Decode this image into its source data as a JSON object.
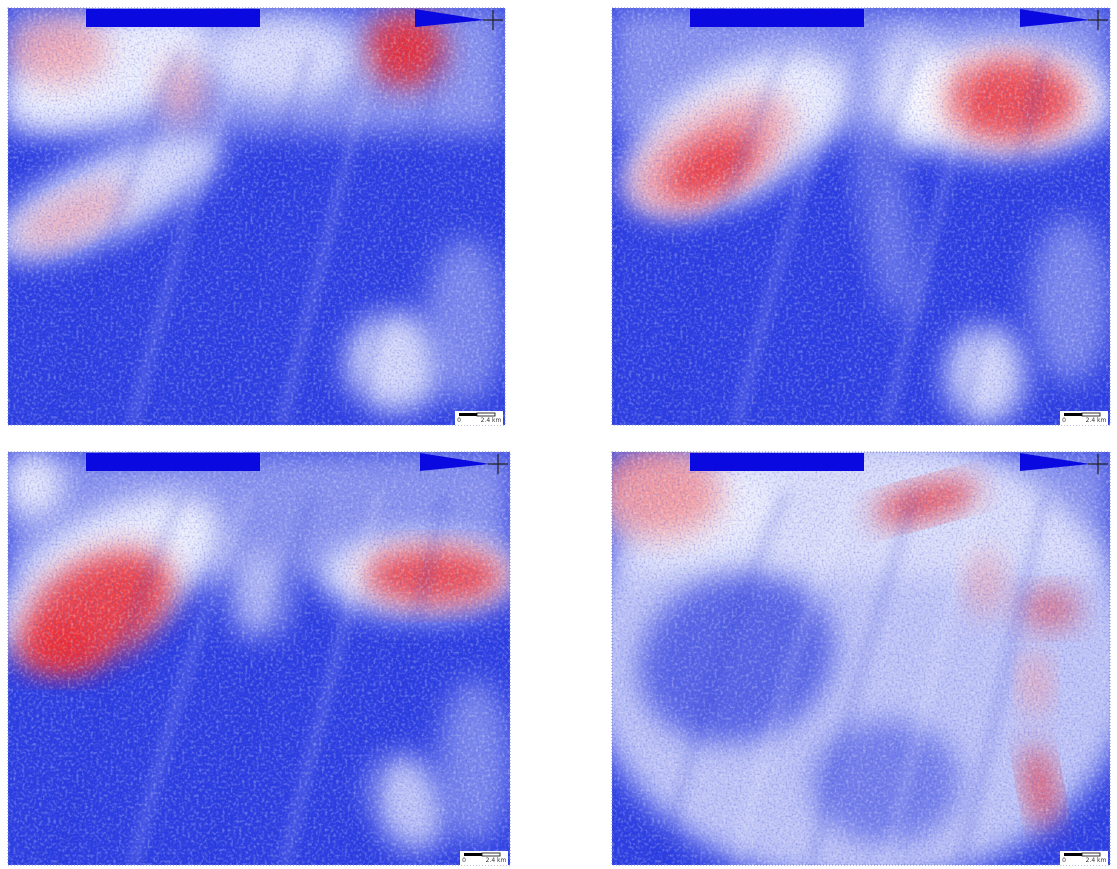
{
  "panels": [
    {
      "scale_bar": {
        "start": "0",
        "end": "2.4 km"
      }
    },
    {
      "scale_bar": {
        "start": "0",
        "end": "2.4 km"
      }
    },
    {
      "scale_bar": {
        "start": "0",
        "end": "2.4 km"
      }
    },
    {
      "scale_bar": {
        "start": "0",
        "end": "2.4 km"
      }
    }
  ]
}
